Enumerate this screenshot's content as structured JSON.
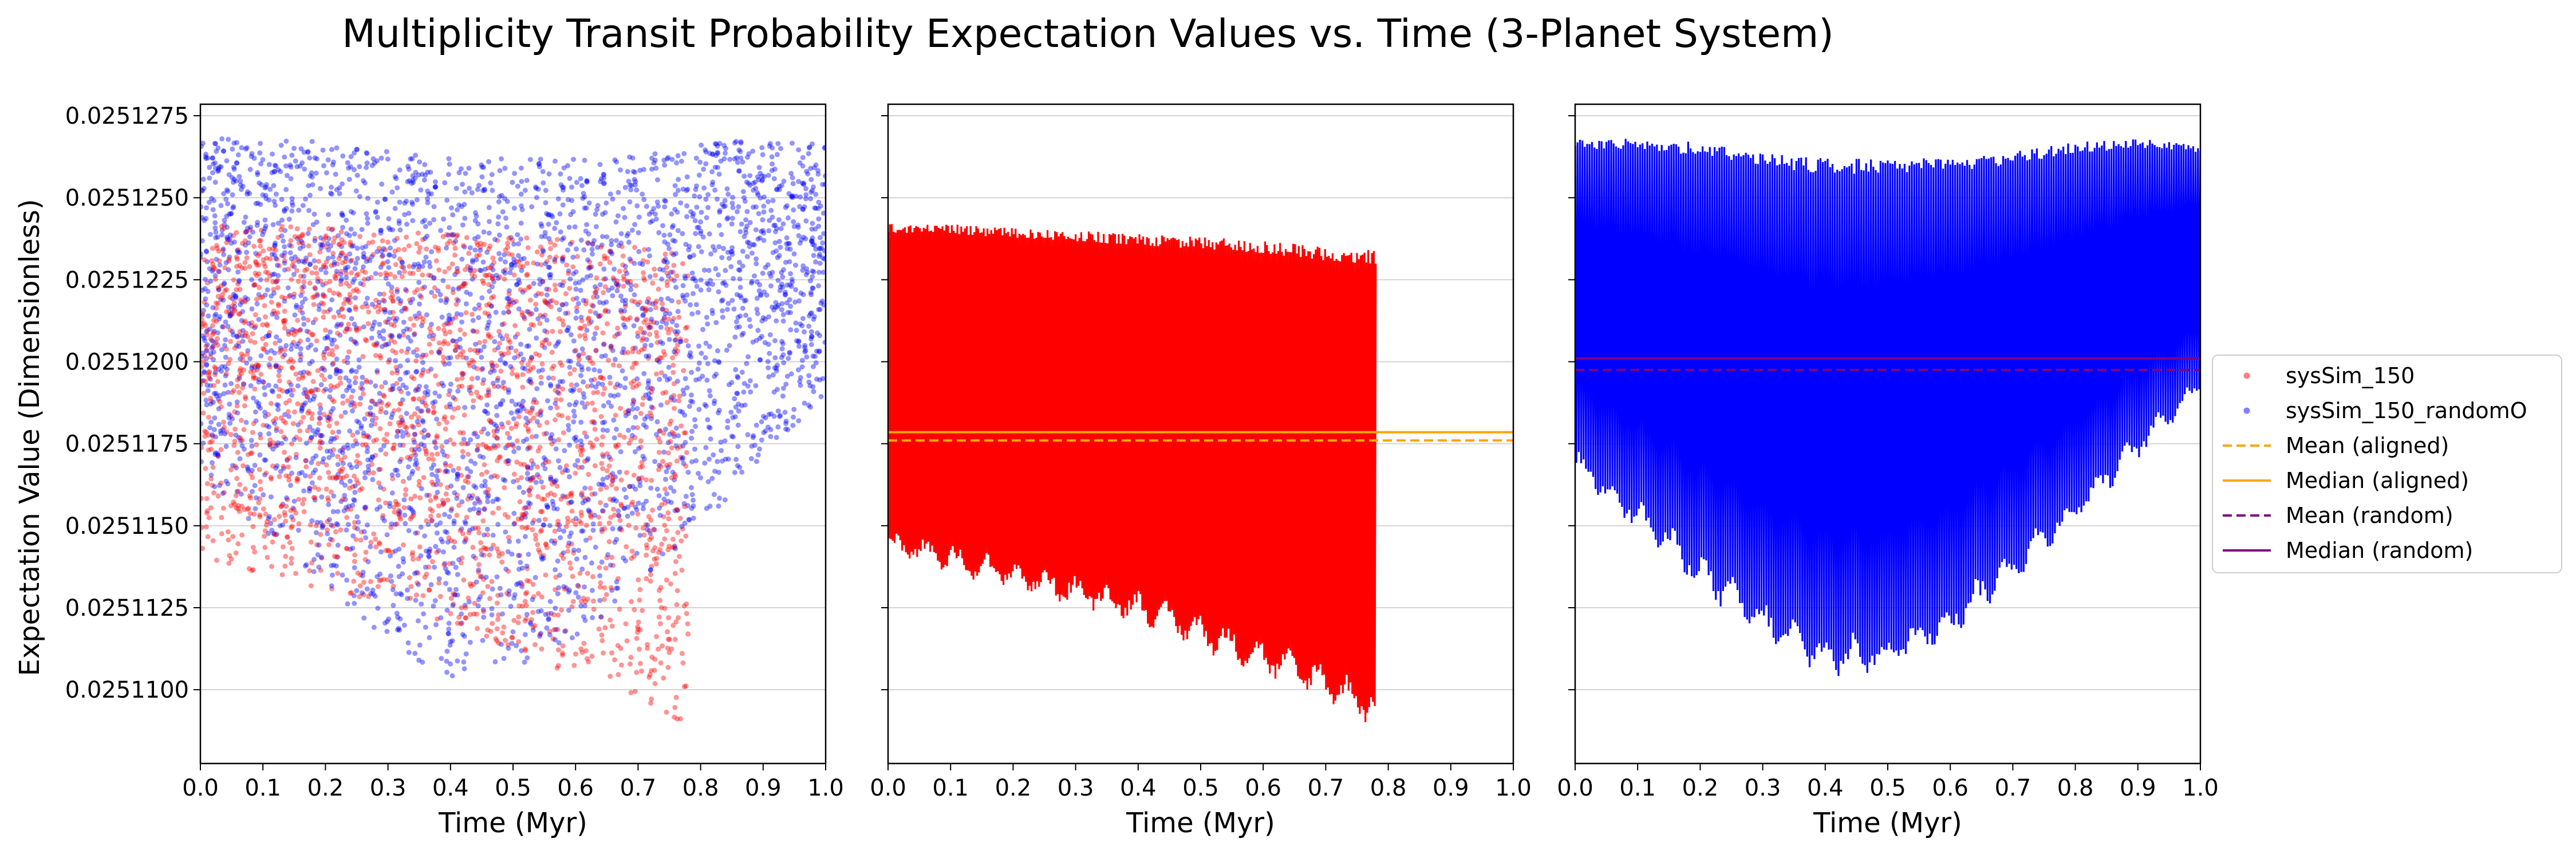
{
  "chart_data": {
    "type": "scatter",
    "title": "Multiplicity Transit Probability Expectation Values vs. Time (3-Planet System)",
    "ylabel": "Expectation Value (Dimensionless)",
    "xlabel": "Time (Myr)",
    "xlim": [
      0.0,
      1.0
    ],
    "ylim": [
      0.02510775,
      0.02512785
    ],
    "x_ticks": [
      "0.0",
      "0.1",
      "0.2",
      "0.3",
      "0.4",
      "0.5",
      "0.6",
      "0.7",
      "0.8",
      "0.9",
      "1.0"
    ],
    "y_ticks": [
      "0.0251100",
      "0.0251125",
      "0.0251150",
      "0.0251175",
      "0.0251200",
      "0.0251225",
      "0.0251250",
      "0.0251275"
    ],
    "grid": "horizontal",
    "legend_position": "center-right",
    "colors": {
      "aligned": "#ff0000",
      "random": "#0000ff",
      "aligned_stats": "#ffa500",
      "random_stats": "#800080"
    },
    "series": [
      {
        "name": "sysSim_150",
        "x_range": [
          0.0,
          0.78
        ],
        "upper_envelope": {
          "x": [
            0.0,
            0.1,
            0.2,
            0.3,
            0.4,
            0.5,
            0.6,
            0.7,
            0.78
          ],
          "y": [
            0.0251242,
            0.0251242,
            0.0251241,
            0.025124,
            0.0251239,
            0.0251238,
            0.0251237,
            0.0251235,
            0.0251234
          ]
        },
        "lower_envelope": {
          "x": [
            0.0,
            0.1,
            0.2,
            0.3,
            0.4,
            0.5,
            0.6,
            0.7,
            0.78
          ],
          "y": [
            0.025114,
            0.0251135,
            0.025113,
            0.0251125,
            0.025112,
            0.0251112,
            0.0251104,
            0.0251096,
            0.0251088
          ]
        }
      },
      {
        "name": "sysSim_150_randomO",
        "x_range": [
          0.0,
          1.0
        ],
        "upper_envelope": {
          "x": [
            0.0,
            0.1,
            0.2,
            0.3,
            0.4,
            0.5,
            0.6,
            0.7,
            0.8,
            0.9,
            1.0
          ],
          "y": [
            0.0251268,
            0.0251268,
            0.0251267,
            0.0251264,
            0.0251262,
            0.0251262,
            0.0251262,
            0.0251264,
            0.0251267,
            0.0251268,
            0.0251266
          ]
        },
        "lower_envelope": {
          "x": [
            0.0,
            0.1,
            0.2,
            0.3,
            0.4,
            0.5,
            0.6,
            0.7,
            0.8,
            0.9,
            1.0
          ],
          "y": [
            0.0251165,
            0.0251148,
            0.025113,
            0.0251114,
            0.0251103,
            0.0251104,
            0.0251115,
            0.0251132,
            0.025115,
            0.025117,
            0.025119
          ]
        }
      }
    ],
    "reference_lines": [
      {
        "name": "Mean (aligned)",
        "y": 0.0251176,
        "style": "dashed",
        "panel": 1
      },
      {
        "name": "Median (aligned)",
        "y": 0.02511785,
        "style": "solid",
        "panel": 1
      },
      {
        "name": "Mean (random)",
        "y": 0.02511975,
        "style": "dashed",
        "panel": 2
      },
      {
        "name": "Median (random)",
        "y": 0.0251201,
        "style": "solid",
        "panel": 2
      }
    ],
    "panels": [
      {
        "id": "panel-1",
        "contents": [
          "sysSim_150",
          "sysSim_150_randomO"
        ],
        "render": "scatter"
      },
      {
        "id": "panel-2",
        "contents": [
          "sysSim_150"
        ],
        "render": "line"
      },
      {
        "id": "panel-3",
        "contents": [
          "sysSim_150_randomO"
        ],
        "render": "line"
      }
    ],
    "legend": [
      "sysSim_150",
      "sysSim_150_randomO",
      "Mean (aligned)",
      "Median (aligned)",
      "Mean (random)",
      "Median (random)"
    ]
  }
}
